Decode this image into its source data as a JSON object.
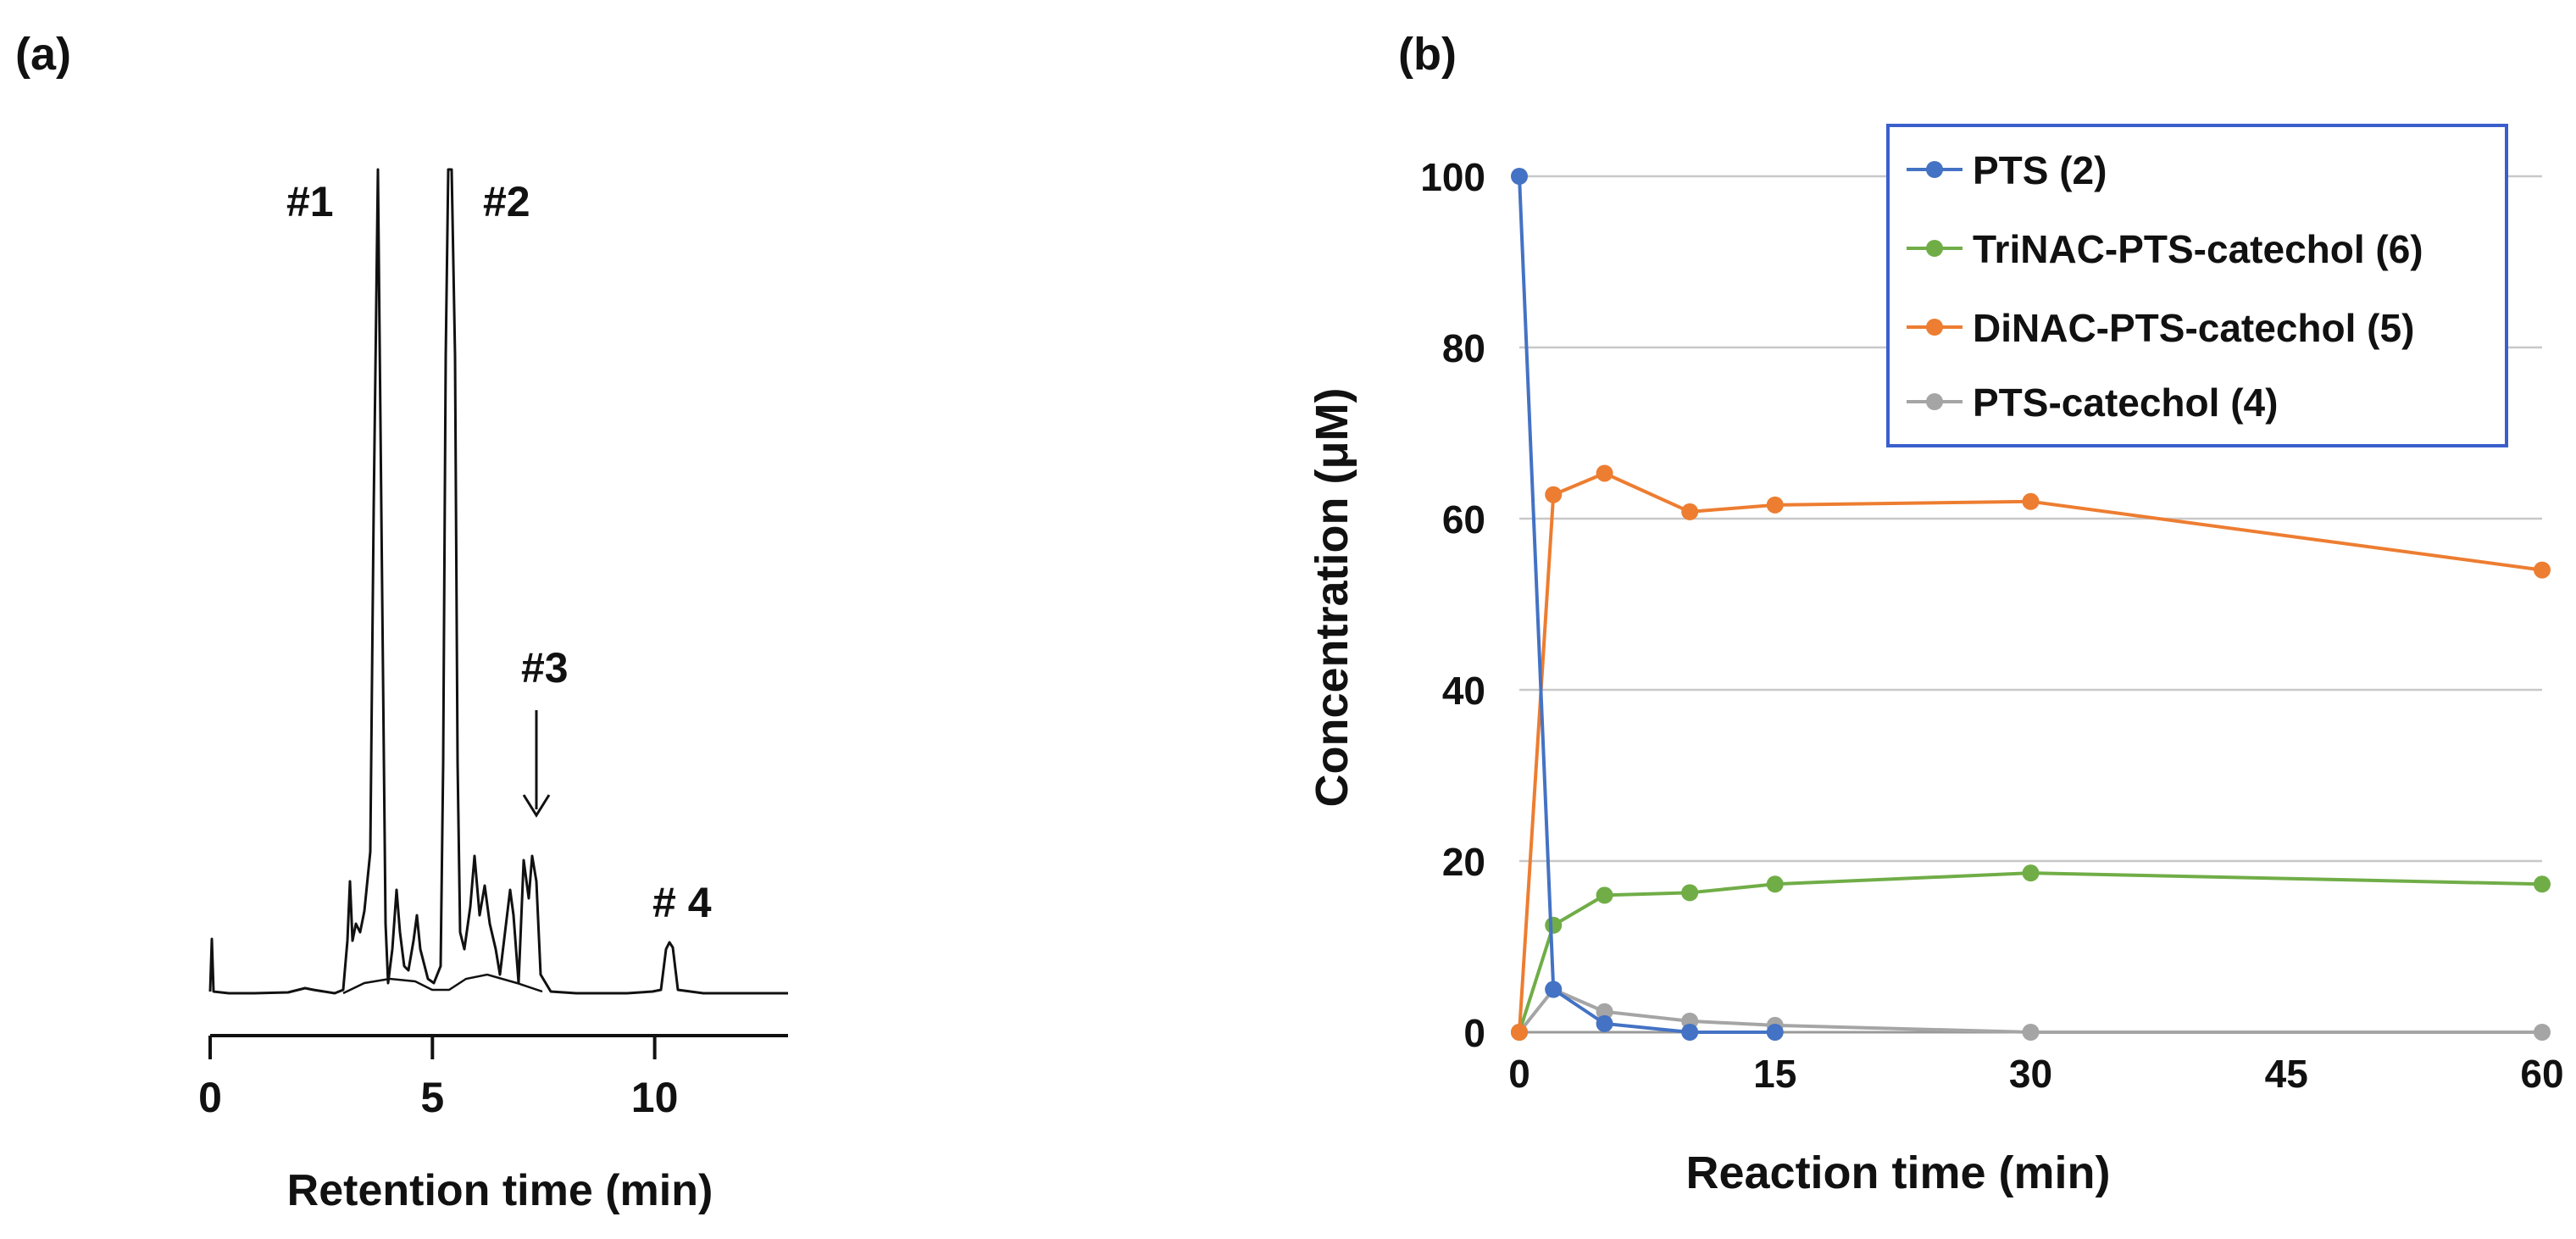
{
  "chart_data": [
    {
      "panel": "(a)",
      "type": "line",
      "title": "",
      "xlabel": "Retention time (min)",
      "ylabel": "",
      "xlim": [
        0,
        13
      ],
      "xticks": [
        0,
        5,
        10
      ],
      "yaxis_visible": false,
      "peak_labels": [
        {
          "text": "#1",
          "x": 3.8
        },
        {
          "text": "#2",
          "x": 5.4
        },
        {
          "text": "#3",
          "x": 7.3
        },
        {
          "text": "# 4",
          "x": 10.4
        }
      ]
    },
    {
      "panel": "(b)",
      "type": "line",
      "title": "",
      "xlabel": "Reaction time (min)",
      "ylabel": "Concentration (μM)",
      "x": [
        0,
        2,
        5,
        10,
        15,
        30,
        60
      ],
      "xtick_labels": [
        "0",
        "15",
        "30",
        "45",
        "60"
      ],
      "xtick_values": [
        0,
        15,
        30,
        45,
        60
      ],
      "xlim": [
        0,
        60
      ],
      "ylim": [
        0,
        100
      ],
      "yticks": [
        0,
        20,
        40,
        60,
        80,
        100
      ],
      "grid": true,
      "legend": "top-right",
      "series": [
        {
          "name": "PTS (2)",
          "color": "#4472C4",
          "x": [
            0,
            2,
            5,
            10,
            15
          ],
          "values": [
            100,
            5,
            1,
            0,
            0
          ]
        },
        {
          "name": "TriNAC-PTS-catechol (6)",
          "color": "#70AD47",
          "x": [
            0,
            2,
            5,
            10,
            15,
            30,
            60
          ],
          "values": [
            0,
            12.5,
            16,
            16.3,
            17.3,
            18.6,
            17.3
          ]
        },
        {
          "name": "DiNAC-PTS-catechol (5)",
          "color": "#ED7D31",
          "x": [
            0,
            2,
            5,
            10,
            15,
            30,
            60
          ],
          "values": [
            0,
            62.8,
            65.3,
            60.8,
            61.6,
            62,
            54
          ]
        },
        {
          "name": "PTS-catechol (4)",
          "color": "#A5A5A5",
          "x": [
            0,
            2,
            5,
            10,
            15,
            30,
            60
          ],
          "values": [
            0,
            5,
            2.4,
            1.3,
            0.8,
            0,
            0
          ]
        }
      ]
    }
  ]
}
